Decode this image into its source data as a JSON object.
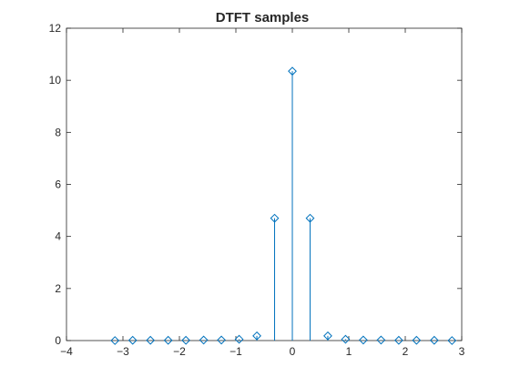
{
  "chart_data": {
    "type": "stem",
    "title": "DTFT samples",
    "xlabel": "",
    "ylabel": "",
    "xlim": [
      -4,
      3
    ],
    "ylim": [
      0,
      12
    ],
    "xticks": [
      "-4",
      "-3",
      "-2",
      "-1",
      "0",
      "1",
      "2",
      "3"
    ],
    "yticks": [
      "0",
      "2",
      "4",
      "6",
      "8",
      "10",
      "12"
    ],
    "grid": false,
    "legend": "none",
    "marker": "diamond",
    "color": "#0072BD",
    "x": [
      -3.1416,
      -2.8274,
      -2.5133,
      -2.1991,
      -1.885,
      -1.5708,
      -1.2566,
      -0.9425,
      -0.6283,
      -0.3142,
      0,
      0.3142,
      0.6283,
      0.9425,
      1.2566,
      1.5708,
      1.885,
      2.1991,
      2.5133,
      2.8274
    ],
    "values": [
      0.0,
      0.01,
      0.01,
      0.01,
      0.01,
      0.02,
      0.02,
      0.05,
      0.18,
      4.7,
      10.35,
      4.7,
      0.18,
      0.05,
      0.02,
      0.02,
      0.01,
      0.01,
      0.01,
      0.0
    ]
  }
}
